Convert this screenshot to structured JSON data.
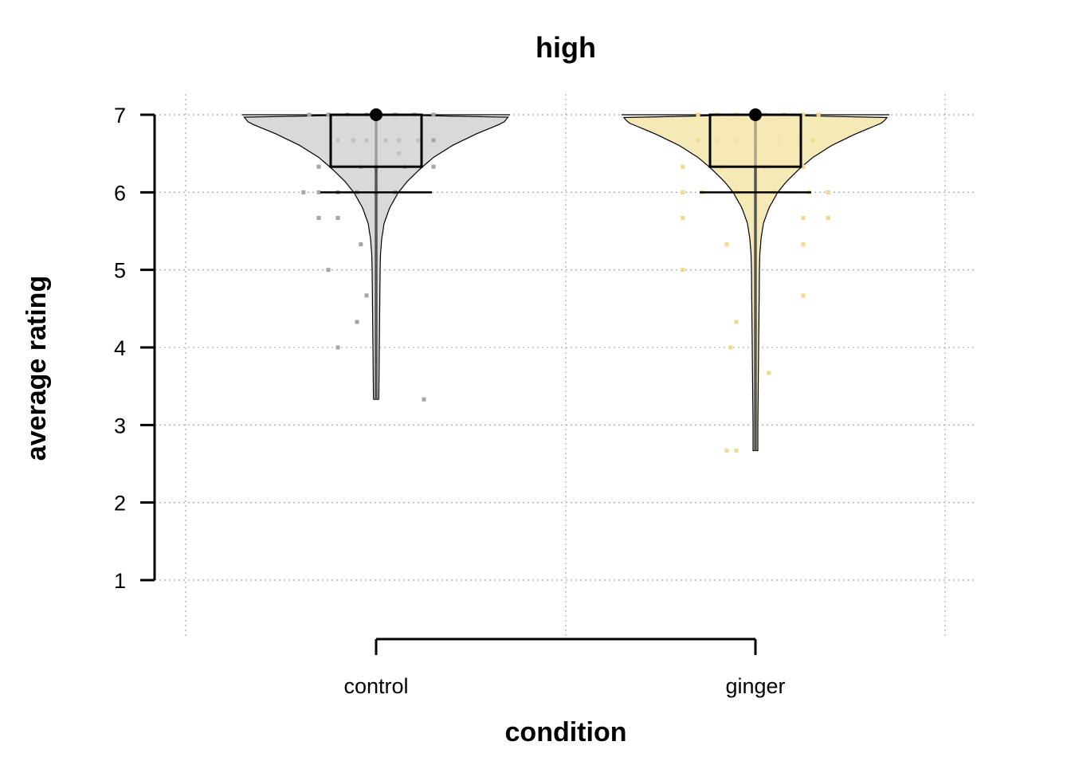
{
  "chart_data": {
    "type": "violin",
    "title": "high",
    "xlabel": "condition",
    "ylabel": "average rating",
    "ylim": [
      1,
      7
    ],
    "yticks": [
      1,
      2,
      3,
      4,
      5,
      6,
      7
    ],
    "grid": true,
    "categories": [
      "control",
      "ginger"
    ],
    "groups": [
      {
        "name": "control",
        "color": "#d9d9d9",
        "point_color": "#a6a6a6",
        "min": 3.33,
        "q1": 6.33,
        "median": 7,
        "q3": 7,
        "max": 7,
        "lower_fence": 6,
        "points": [
          {
            "x": -0.35,
            "y": 7
          },
          {
            "x": -0.25,
            "y": 7
          },
          {
            "x": -0.15,
            "y": 7
          },
          {
            "x": -0.05,
            "y": 7
          },
          {
            "x": 0.1,
            "y": 7
          },
          {
            "x": 0.2,
            "y": 7
          },
          {
            "x": 0.3,
            "y": 7
          },
          {
            "x": -0.2,
            "y": 6.67
          },
          {
            "x": -0.12,
            "y": 6.67
          },
          {
            "x": -0.05,
            "y": 6.67
          },
          {
            "x": 0.05,
            "y": 6.67
          },
          {
            "x": 0.12,
            "y": 6.67
          },
          {
            "x": 0.22,
            "y": 6.67
          },
          {
            "x": 0.3,
            "y": 6.67
          },
          {
            "x": 0.12,
            "y": 6.5
          },
          {
            "x": -0.3,
            "y": 6.33
          },
          {
            "x": -0.08,
            "y": 6.33
          },
          {
            "x": 0.0,
            "y": 6.33
          },
          {
            "x": 0.15,
            "y": 6.33
          },
          {
            "x": 0.3,
            "y": 6.33
          },
          {
            "x": -0.38,
            "y": 6
          },
          {
            "x": -0.3,
            "y": 6
          },
          {
            "x": -0.2,
            "y": 6
          },
          {
            "x": -0.1,
            "y": 6
          },
          {
            "x": 0.0,
            "y": 6
          },
          {
            "x": 0.1,
            "y": 6
          },
          {
            "x": -0.3,
            "y": 5.67
          },
          {
            "x": -0.2,
            "y": 5.67
          },
          {
            "x": -0.08,
            "y": 5.33
          },
          {
            "x": -0.25,
            "y": 5
          },
          {
            "x": -0.05,
            "y": 4.67
          },
          {
            "x": -0.1,
            "y": 4.33
          },
          {
            "x": -0.2,
            "y": 4
          },
          {
            "x": 0.25,
            "y": 3.33
          }
        ]
      },
      {
        "name": "ginger",
        "color": "#f5e9b5",
        "point_color": "#f0d98c",
        "min": 2.67,
        "q1": 6.33,
        "median": 7,
        "q3": 7,
        "max": 7,
        "lower_fence": 6,
        "points": [
          {
            "x": -0.3,
            "y": 7
          },
          {
            "x": -0.2,
            "y": 7
          },
          {
            "x": -0.1,
            "y": 7
          },
          {
            "x": 0.05,
            "y": 7
          },
          {
            "x": 0.15,
            "y": 7
          },
          {
            "x": 0.25,
            "y": 7
          },
          {
            "x": 0.33,
            "y": 7
          },
          {
            "x": -0.3,
            "y": 6.67
          },
          {
            "x": -0.2,
            "y": 6.67
          },
          {
            "x": -0.1,
            "y": 6.67
          },
          {
            "x": 0.0,
            "y": 6.67
          },
          {
            "x": 0.12,
            "y": 6.67
          },
          {
            "x": 0.22,
            "y": 6.67
          },
          {
            "x": 0.3,
            "y": 6.67
          },
          {
            "x": -0.38,
            "y": 6.33
          },
          {
            "x": -0.18,
            "y": 6.33
          },
          {
            "x": 0.05,
            "y": 6.33
          },
          {
            "x": 0.25,
            "y": 6.33
          },
          {
            "x": -0.38,
            "y": 6
          },
          {
            "x": -0.28,
            "y": 6
          },
          {
            "x": -0.1,
            "y": 6
          },
          {
            "x": 0.0,
            "y": 6
          },
          {
            "x": 0.1,
            "y": 6
          },
          {
            "x": 0.28,
            "y": 6
          },
          {
            "x": 0.38,
            "y": 6
          },
          {
            "x": -0.38,
            "y": 5.67
          },
          {
            "x": 0.25,
            "y": 5.67
          },
          {
            "x": 0.38,
            "y": 5.67
          },
          {
            "x": -0.15,
            "y": 5.33
          },
          {
            "x": 0.25,
            "y": 5.33
          },
          {
            "x": -0.38,
            "y": 5
          },
          {
            "x": 0.25,
            "y": 4.67
          },
          {
            "x": -0.1,
            "y": 4.33
          },
          {
            "x": -0.13,
            "y": 4
          },
          {
            "x": 0.07,
            "y": 3.67
          },
          {
            "x": -0.15,
            "y": 2.67
          },
          {
            "x": -0.1,
            "y": 2.67
          }
        ]
      }
    ]
  }
}
